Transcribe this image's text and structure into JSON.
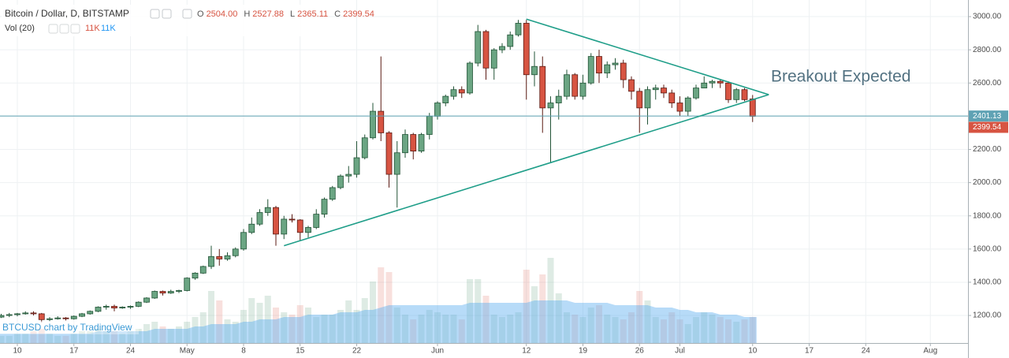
{
  "chart_data": {
    "type": "candlestick",
    "title": "Bitcoin / Dollar, D, BITSTAMP",
    "ohlc_header": [
      {
        "key": "O",
        "value": "2504.00"
      },
      {
        "key": "H",
        "value": "2527.88"
      },
      {
        "key": "L",
        "value": "2365.11"
      },
      {
        "key": "C",
        "value": "2399.54"
      }
    ],
    "volume_title": "Vol (20)",
    "volume_header": [
      "11K",
      "11K"
    ],
    "watermark": "BTCUSD chart by TradingView",
    "annotation": "Breakout Expected",
    "up_color": "#6ba583",
    "up_border": "#225437",
    "down_color": "#d75442",
    "down_border": "#5b1a13",
    "volume_up_color": "rgba(107,165,131,0.22)",
    "volume_down_color": "rgba(215,84,66,0.18)",
    "volume_ma_color": "rgba(95,175,240,0.45)",
    "trendline_color": "#1f9e89",
    "hline_color": "#5fa2b4",
    "ylim": [
      1034,
      3100
    ],
    "yticks": [
      {
        "value": 3000,
        "label": "3000.00"
      },
      {
        "value": 2800,
        "label": "2800.00"
      },
      {
        "value": 2600,
        "label": "2600.00"
      },
      {
        "value": 2400,
        "label": "2400.00"
      },
      {
        "value": 2200,
        "label": "2200.00"
      },
      {
        "value": 2000,
        "label": "2000.00"
      },
      {
        "value": 1800,
        "label": "1800.00"
      },
      {
        "value": 1600,
        "label": "1600.00"
      },
      {
        "value": 1400,
        "label": "1400.00"
      },
      {
        "value": 1200,
        "label": "1200.00"
      }
    ],
    "grid": true,
    "hline": 2401.13,
    "last_price": 2399.54,
    "x": [
      "Apr 8",
      "Apr 9",
      "Apr 10",
      "Apr 11",
      "Apr 12",
      "Apr 13",
      "Apr 14",
      "Apr 15",
      "Apr 16",
      "Apr 17",
      "Apr 18",
      "Apr 19",
      "Apr 20",
      "Apr 21",
      "Apr 22",
      "Apr 23",
      "Apr 24",
      "Apr 25",
      "Apr 26",
      "Apr 27",
      "Apr 28",
      "Apr 29",
      "Apr 30",
      "May 1",
      "May 2",
      "May 3",
      "May 4",
      "May 5",
      "May 6",
      "May 7",
      "May 8",
      "May 9",
      "May 10",
      "May 11",
      "May 12",
      "May 13",
      "May 14",
      "May 15",
      "May 16",
      "May 17",
      "May 18",
      "May 19",
      "May 20",
      "May 21",
      "May 22",
      "May 23",
      "May 24",
      "May 25",
      "May 26",
      "May 27",
      "May 28",
      "May 29",
      "May 30",
      "May 31",
      "Jun 1",
      "Jun 2",
      "Jun 3",
      "Jun 4",
      "Jun 5",
      "Jun 6",
      "Jun 7",
      "Jun 8",
      "Jun 9",
      "Jun 10",
      "Jun 11",
      "Jun 12",
      "Jun 13",
      "Jun 14",
      "Jun 15",
      "Jun 16",
      "Jun 17",
      "Jun 18",
      "Jun 19",
      "Jun 20",
      "Jun 21",
      "Jun 22",
      "Jun 23",
      "Jun 24",
      "Jun 25",
      "Jun 26",
      "Jun 27",
      "Jun 28",
      "Jun 29",
      "Jun 30",
      "Jul 1",
      "Jul 2",
      "Jul 3",
      "Jul 4",
      "Jul 5",
      "Jul 6",
      "Jul 7",
      "Jul 8",
      "Jul 9",
      "Jul 10",
      "Jul 11",
      "Jul 12",
      "Jul 13",
      "Jul 14",
      "Jul 15",
      "Jul 16",
      "Jul 17",
      "Jul 18",
      "Jul 19",
      "Jul 20",
      "Jul 21",
      "Jul 22",
      "Jul 23",
      "Jul 24",
      "Jul 25",
      "Jul 26",
      "Jul 27",
      "Jul 28",
      "Jul 29",
      "Jul 30",
      "Jul 31",
      "Aug 1",
      "Aug 2",
      "Aug 3",
      "Aug 4",
      "Aug 5"
    ],
    "xticks": [
      {
        "value": "Apr 10",
        "label": "10"
      },
      {
        "value": "Apr 17",
        "label": "17"
      },
      {
        "value": "Apr 24",
        "label": "24"
      },
      {
        "value": "May 1",
        "label": "May"
      },
      {
        "value": "May 8",
        "label": "8"
      },
      {
        "value": "May 15",
        "label": "15"
      },
      {
        "value": "May 22",
        "label": "22"
      },
      {
        "value": "Jun 1",
        "label": "Jun"
      },
      {
        "value": "Jun 12",
        "label": "12"
      },
      {
        "value": "Jun 19",
        "label": "19"
      },
      {
        "value": "Jun 26",
        "label": "26"
      },
      {
        "value": "Jul 1",
        "label": "Jul"
      },
      {
        "value": "Jul 10",
        "label": "10"
      },
      {
        "value": "Jul 17",
        "label": "17"
      },
      {
        "value": "Jul 24",
        "label": "24"
      },
      {
        "value": "Aug 1",
        "label": "Aug"
      }
    ],
    "candles": [
      [
        1190,
        1210,
        1185,
        1200
      ],
      [
        1200,
        1215,
        1190,
        1205
      ],
      [
        1205,
        1215,
        1195,
        1210
      ],
      [
        1210,
        1225,
        1205,
        1215
      ],
      [
        1215,
        1225,
        1200,
        1210
      ],
      [
        1210,
        1215,
        1160,
        1175
      ],
      [
        1175,
        1190,
        1165,
        1180
      ],
      [
        1180,
        1195,
        1175,
        1185
      ],
      [
        1185,
        1190,
        1170,
        1180
      ],
      [
        1180,
        1200,
        1175,
        1195
      ],
      [
        1195,
        1215,
        1190,
        1210
      ],
      [
        1210,
        1230,
        1205,
        1225
      ],
      [
        1225,
        1255,
        1220,
        1250
      ],
      [
        1250,
        1265,
        1235,
        1255
      ],
      [
        1255,
        1265,
        1225,
        1245
      ],
      [
        1245,
        1255,
        1240,
        1250
      ],
      [
        1250,
        1260,
        1240,
        1255
      ],
      [
        1255,
        1285,
        1250,
        1280
      ],
      [
        1280,
        1310,
        1275,
        1305
      ],
      [
        1305,
        1350,
        1300,
        1345
      ],
      [
        1345,
        1350,
        1320,
        1335
      ],
      [
        1335,
        1355,
        1330,
        1345
      ],
      [
        1345,
        1355,
        1335,
        1350
      ],
      [
        1350,
        1430,
        1345,
        1425
      ],
      [
        1425,
        1460,
        1415,
        1455
      ],
      [
        1455,
        1500,
        1450,
        1495
      ],
      [
        1495,
        1620,
        1480,
        1555
      ],
      [
        1555,
        1600,
        1500,
        1540
      ],
      [
        1540,
        1580,
        1530,
        1560
      ],
      [
        1560,
        1610,
        1550,
        1600
      ],
      [
        1600,
        1720,
        1590,
        1700
      ],
      [
        1700,
        1790,
        1690,
        1750
      ],
      [
        1750,
        1840,
        1740,
        1820
      ],
      [
        1820,
        1900,
        1800,
        1850
      ],
      [
        1850,
        1860,
        1620,
        1690
      ],
      [
        1690,
        1800,
        1660,
        1780
      ],
      [
        1780,
        1810,
        1760,
        1775
      ],
      [
        1775,
        1780,
        1650,
        1700
      ],
      [
        1700,
        1740,
        1670,
        1730
      ],
      [
        1730,
        1840,
        1720,
        1810
      ],
      [
        1810,
        1910,
        1790,
        1900
      ],
      [
        1900,
        1980,
        1890,
        1970
      ],
      [
        1970,
        2050,
        1960,
        2040
      ],
      [
        2040,
        2100,
        2000,
        2050
      ],
      [
        2050,
        2250,
        2030,
        2150
      ],
      [
        2150,
        2290,
        2140,
        2270
      ],
      [
        2270,
        2480,
        2260,
        2430
      ],
      [
        2430,
        2760,
        2250,
        2300
      ],
      [
        2300,
        2310,
        1970,
        2050
      ],
      [
        2050,
        2250,
        1850,
        2180
      ],
      [
        2180,
        2320,
        2150,
        2290
      ],
      [
        2290,
        2300,
        2140,
        2190
      ],
      [
        2190,
        2300,
        2180,
        2290
      ],
      [
        2290,
        2420,
        2260,
        2400
      ],
      [
        2400,
        2490,
        2380,
        2480
      ],
      [
        2480,
        2530,
        2460,
        2520
      ],
      [
        2520,
        2580,
        2500,
        2560
      ],
      [
        2560,
        2580,
        2510,
        2540
      ],
      [
        2540,
        2730,
        2530,
        2720
      ],
      [
        2720,
        2950,
        2700,
        2910
      ],
      [
        2910,
        2920,
        2620,
        2690
      ],
      [
        2690,
        2810,
        2620,
        2800
      ],
      [
        2800,
        2840,
        2780,
        2820
      ],
      [
        2820,
        2910,
        2800,
        2890
      ],
      [
        2890,
        2980,
        2880,
        2960
      ],
      [
        2960,
        2980,
        2500,
        2650
      ],
      [
        2650,
        2790,
        2580,
        2700
      ],
      [
        2700,
        2760,
        2300,
        2450
      ],
      [
        2450,
        2520,
        2120,
        2480
      ],
      [
        2480,
        2560,
        2380,
        2520
      ],
      [
        2520,
        2680,
        2500,
        2650
      ],
      [
        2650,
        2660,
        2500,
        2520
      ],
      [
        2520,
        2650,
        2500,
        2600
      ],
      [
        2600,
        2780,
        2590,
        2760
      ],
      [
        2760,
        2800,
        2600,
        2660
      ],
      [
        2660,
        2730,
        2630,
        2710
      ],
      [
        2710,
        2750,
        2680,
        2720
      ],
      [
        2720,
        2740,
        2570,
        2620
      ],
      [
        2620,
        2640,
        2500,
        2550
      ],
      [
        2550,
        2570,
        2300,
        2450
      ],
      [
        2450,
        2580,
        2350,
        2560
      ],
      [
        2560,
        2590,
        2500,
        2570
      ],
      [
        2570,
        2590,
        2510,
        2540
      ],
      [
        2540,
        2560,
        2450,
        2480
      ],
      [
        2480,
        2520,
        2400,
        2430
      ],
      [
        2430,
        2520,
        2400,
        2510
      ],
      [
        2510,
        2590,
        2500,
        2570
      ],
      [
        2570,
        2640,
        2570,
        2600
      ],
      [
        2600,
        2620,
        2570,
        2610
      ],
      [
        2610,
        2620,
        2570,
        2600
      ],
      [
        2600,
        2610,
        2480,
        2500
      ],
      [
        2500,
        2570,
        2480,
        2560
      ],
      [
        2560,
        2570,
        2490,
        2500
      ],
      [
        2504,
        2527.88,
        2365.11,
        2399.54
      ],
      null,
      null,
      null,
      null,
      null,
      null,
      null,
      null,
      null,
      null,
      null,
      null,
      null,
      null,
      null,
      null,
      null,
      null,
      null,
      null,
      null,
      null,
      null,
      null,
      null,
      null
    ],
    "volume": [
      3,
      3,
      4,
      4,
      5,
      6,
      4,
      3,
      3,
      4,
      5,
      5,
      6,
      5,
      5,
      4,
      5,
      6,
      8,
      9,
      7,
      6,
      7,
      9,
      11,
      13,
      22,
      18,
      10,
      9,
      14,
      19,
      17,
      20,
      15,
      13,
      12,
      16,
      15,
      11,
      12,
      12,
      14,
      18,
      14,
      19,
      26,
      32,
      30,
      15,
      12,
      10,
      12,
      14,
      13,
      12,
      12,
      10,
      27,
      27,
      20,
      12,
      11,
      12,
      13,
      31,
      24,
      29,
      36,
      21,
      13,
      12,
      11,
      15,
      16,
      12,
      11,
      10,
      13,
      22,
      18,
      11,
      10,
      13,
      10,
      8,
      11,
      13,
      12,
      11,
      10,
      9,
      10,
      11,
      null,
      null,
      null,
      null,
      null,
      null,
      null,
      null,
      null,
      null,
      null,
      null,
      null,
      null,
      null,
      null,
      null,
      null,
      null,
      null,
      null,
      null,
      null,
      null,
      null,
      null
    ],
    "volume_ma": [
      4,
      4,
      4,
      4,
      4,
      4,
      4,
      4,
      4,
      4,
      4,
      4,
      5,
      5,
      5,
      5,
      5,
      5,
      5,
      6,
      6,
      6,
      6,
      6,
      7,
      7,
      8,
      8,
      8,
      8,
      9,
      9,
      10,
      10,
      10,
      11,
      11,
      11,
      12,
      12,
      12,
      12,
      13,
      13,
      13,
      14,
      14,
      15,
      16,
      16,
      16,
      16,
      16,
      16,
      16,
      16,
      16,
      16,
      17,
      17,
      17,
      17,
      17,
      17,
      17,
      17,
      18,
      18,
      18,
      18,
      18,
      17,
      17,
      17,
      17,
      17,
      16,
      16,
      16,
      16,
      16,
      15,
      15,
      15,
      14,
      14,
      13,
      13,
      13,
      12,
      12,
      12,
      11,
      11,
      null,
      null,
      null,
      null,
      null,
      null,
      null,
      null,
      null,
      null,
      null,
      null,
      null,
      null,
      null,
      null,
      null,
      null,
      null,
      null,
      null,
      null,
      null,
      null,
      null,
      null
    ],
    "trendlines": [
      {
        "x": [
          "May 13",
          "Jul 12"
        ],
        "y": [
          1620,
          2530
        ]
      },
      {
        "x": [
          "Jun 12",
          "Jul 12"
        ],
        "y": [
          2985,
          2530
        ]
      }
    ]
  }
}
